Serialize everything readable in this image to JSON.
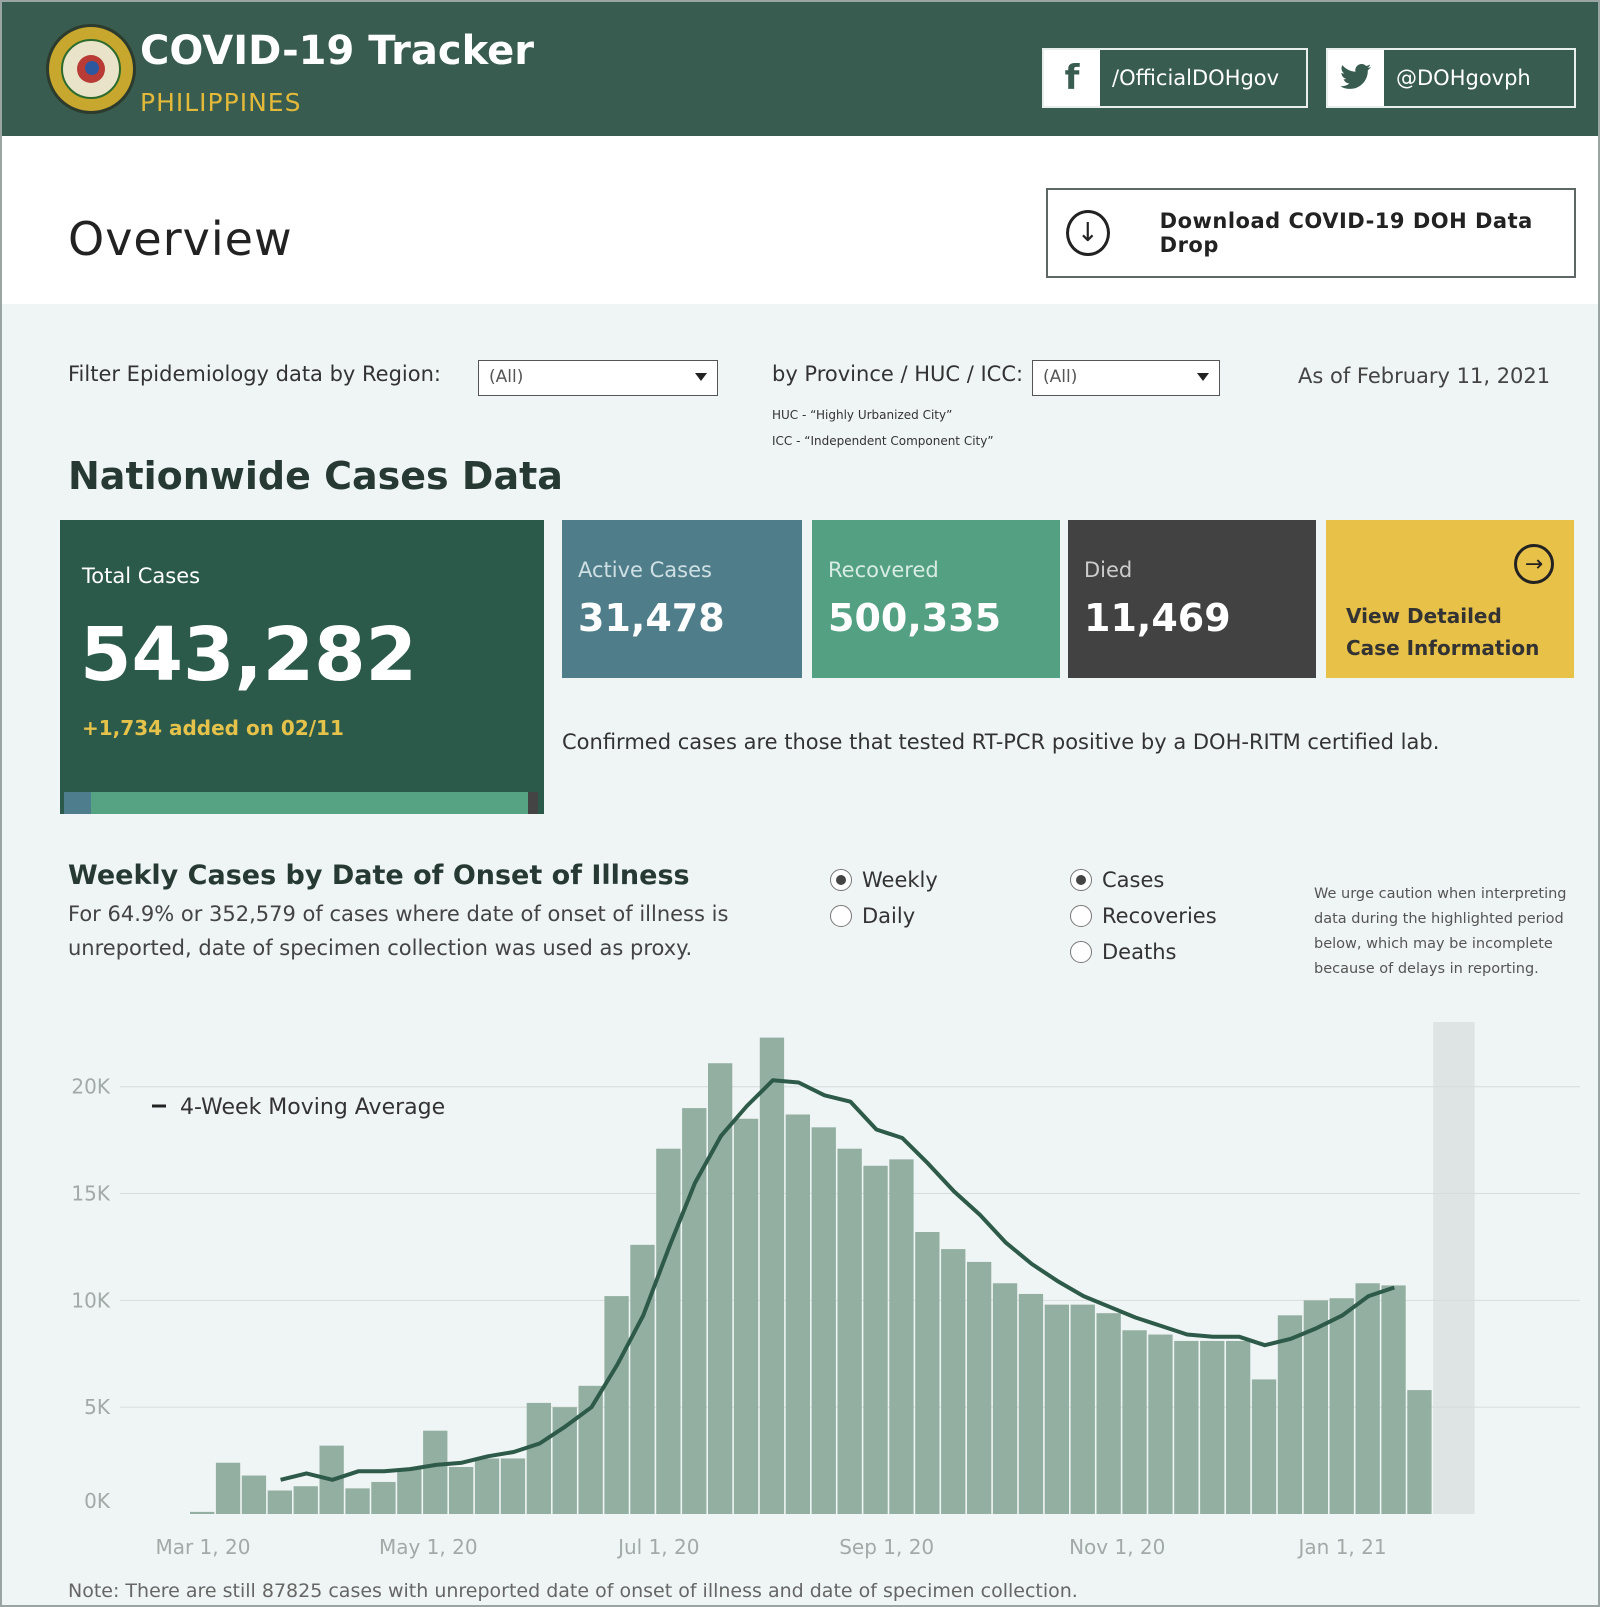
{
  "header": {
    "title": "COVID-19 Tracker",
    "subtitle": "PHILIPPINES",
    "facebook_label": "/OfficialDOHgov",
    "twitter_label": "@DOHgovph",
    "brand_color": "#385c4f"
  },
  "overview": {
    "title": "Overview",
    "download_label": "Download COVID-19 DOH Data Drop"
  },
  "filters": {
    "region_label": "Filter Epidemiology data by Region:",
    "region_value": "(All)",
    "province_label": "by Province / HUC / ICC:",
    "province_value": "(All)",
    "huc_note": "HUC - “Highly Urbanized City”",
    "icc_note": "ICC - “Independent Component City”",
    "as_of": "As of February 11, 2021"
  },
  "nationwide": {
    "title": "Nationwide Cases Data",
    "total_label": "Total Cases",
    "total_value": "543,282",
    "total_added": "+1,734 added on 02/11",
    "active_label": "Active Cases",
    "active_value": "31,478",
    "recovered_label": "Recovered",
    "recovered_value": "500,335",
    "died_label": "Died",
    "died_value": "11,469",
    "detail_line1": "View Detailed",
    "detail_line2": "Case Information",
    "confirmed_note": "Confirmed cases are those that tested RT-PCR positive by a DOH-RITM certified lab.",
    "colors": {
      "total": "#2b5a4a",
      "active": "#4f7d89",
      "recovered": "#54a082",
      "died": "#424242",
      "detail": "#e8c149"
    }
  },
  "weekly": {
    "title": "Weekly Cases by Date of Onset of Illness",
    "sub1": "For 64.9% or 352,579 of cases where date of onset of illness is",
    "sub2": "unreported, date of specimen collection was used as proxy.",
    "radio_weekly": "Weekly",
    "radio_daily": "Daily",
    "radio_cases": "Cases",
    "radio_recoveries": "Recoveries",
    "radio_deaths": "Deaths",
    "caution": "We urge caution when interpreting data during the highlighted period below, which may be incomplete because of delays in reporting.",
    "bottom_note": "Note: There are still 87825 cases with unreported date of onset of illness and date of specimen collection."
  },
  "chart_data": {
    "type": "bar",
    "title": "Weekly Cases by Date of Onset of Illness",
    "legend": "4-Week Moving Average",
    "y_ticks": [
      "20K",
      "15K",
      "10K",
      "5K",
      "0K"
    ],
    "y_tick_values": [
      20000,
      15000,
      10000,
      5000,
      0
    ],
    "x_ticks": [
      "Mar 1, 20",
      "May 1, 20",
      "Jul 1, 20",
      "Sep 1, 20",
      "Nov 1, 20",
      "Jan 1, 21"
    ],
    "x_tick_week_index": [
      0.5,
      9.2,
      18.1,
      26.9,
      35.8,
      44.5
    ],
    "ylim": [
      0,
      22000
    ],
    "grid": true,
    "highlight_from_week": 49,
    "bar_color": "#93afa2",
    "line_color": "#2d5a49",
    "values": [
      100,
      2400,
      1800,
      1100,
      1300,
      3200,
      1200,
      1500,
      2100,
      3900,
      2200,
      2600,
      2600,
      5200,
      5000,
      6000,
      10200,
      12600,
      17100,
      19000,
      21100,
      18500,
      22300,
      18700,
      18100,
      17100,
      16300,
      16600,
      13200,
      12400,
      11800,
      10800,
      10300,
      9800,
      9800,
      9400,
      8600,
      8400,
      8100,
      8100,
      8100,
      6300,
      9300,
      10000,
      10100,
      10800,
      10700,
      5800
    ],
    "moving_average": [
      null,
      null,
      null,
      1600,
      1900,
      1600,
      2000,
      2000,
      2100,
      2300,
      2400,
      2700,
      2900,
      3300,
      4100,
      5000,
      7000,
      9300,
      12500,
      15500,
      17700,
      19100,
      20300,
      20200,
      19600,
      19300,
      18000,
      17600,
      16400,
      15100,
      14000,
      12700,
      11700,
      10900,
      10200,
      9700,
      9200,
      8800,
      8400,
      8300,
      8300,
      7900,
      8200,
      8700,
      9300,
      10200,
      10600,
      null
    ]
  }
}
